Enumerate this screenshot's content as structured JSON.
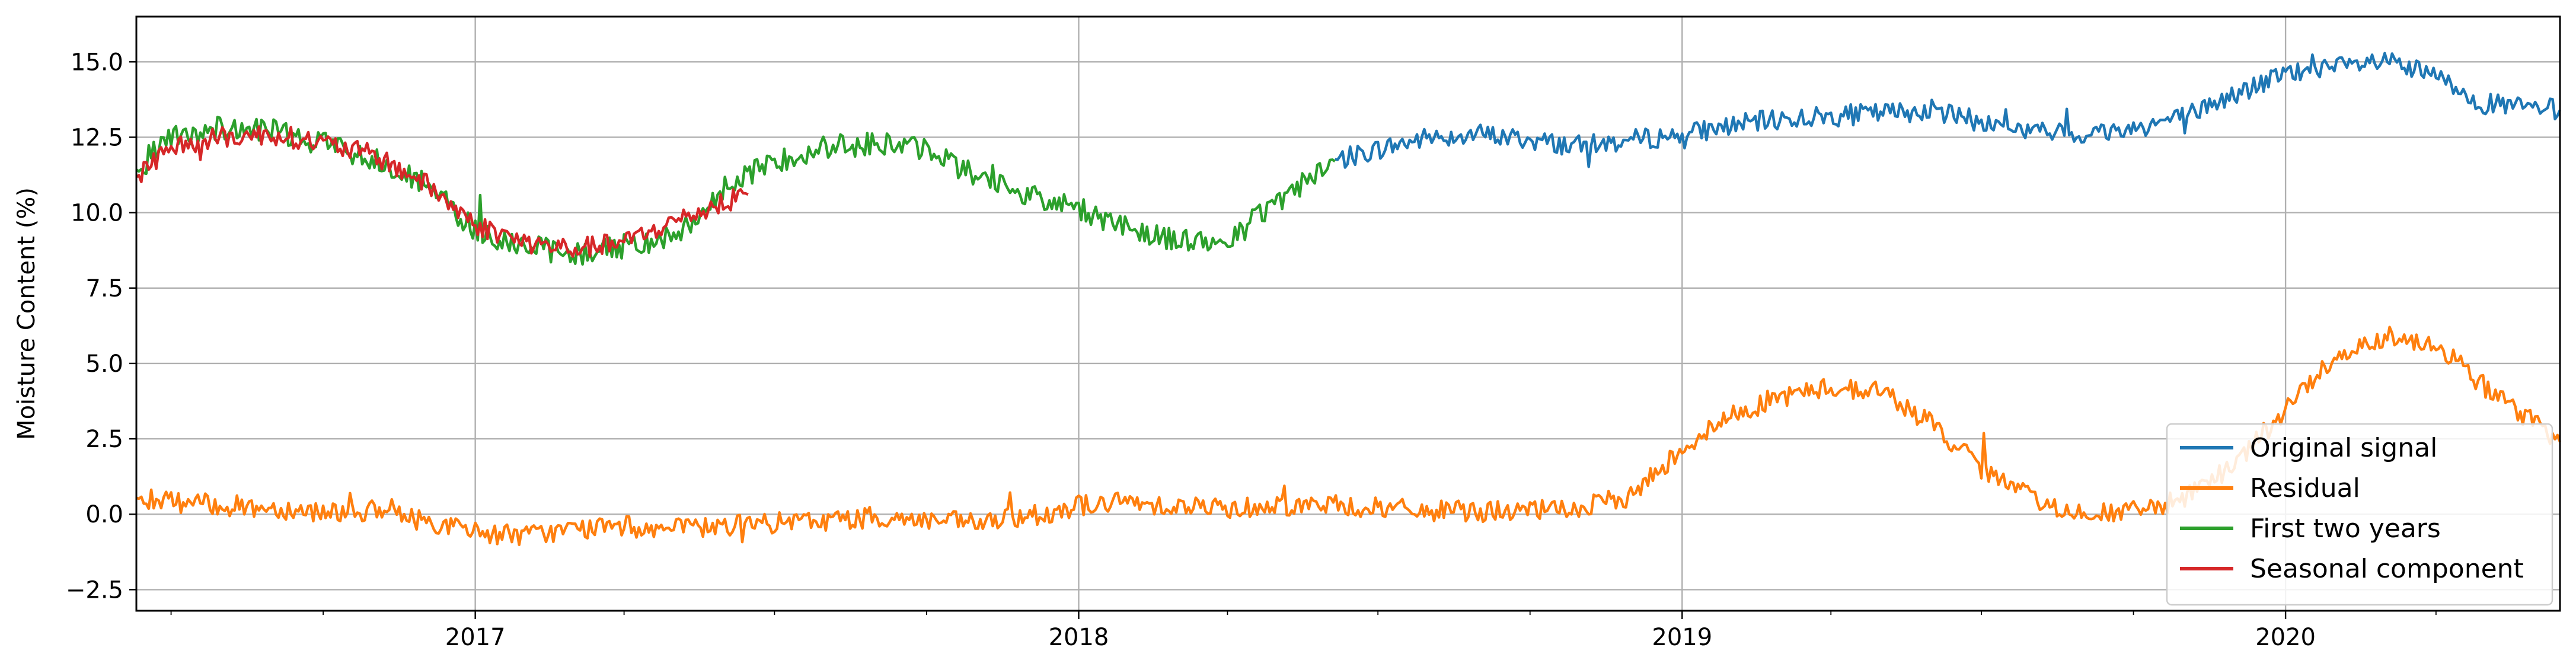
{
  "chart_data": {
    "type": "line",
    "title": "",
    "xlabel": "",
    "ylabel": "Moisture Content (%)",
    "xlim": [
      "2016-06-10",
      "2020-06-15"
    ],
    "ylim": [
      -3.2,
      16.5
    ],
    "grid": true,
    "legend_position": "lower-right",
    "x_tick_labels": [
      "2017",
      "2018",
      "2019",
      "2020"
    ],
    "x_tick_dates": [
      "2017-01-01",
      "2018-01-01",
      "2019-01-01",
      "2020-01-01"
    ],
    "y_ticks": [
      -2.5,
      0.0,
      2.5,
      5.0,
      7.5,
      10.0,
      12.5,
      15.0
    ],
    "y_tick_labels": [
      "−2.5",
      "0.0",
      "2.5",
      "5.0",
      "7.5",
      "10.0",
      "12.5",
      "15.0"
    ],
    "series": [
      {
        "name": "Original signal",
        "color": "#1f77b4",
        "x": [
          "2018-06-05",
          "2018-07-01",
          "2018-08-01",
          "2018-09-01",
          "2018-10-01",
          "2018-11-01",
          "2018-12-01",
          "2019-01-01",
          "2019-02-01",
          "2019-03-01",
          "2019-04-01",
          "2019-05-01",
          "2019-06-01",
          "2019-07-01",
          "2019-08-01",
          "2019-09-01",
          "2019-10-01",
          "2019-11-01",
          "2019-12-01",
          "2020-01-01",
          "2020-02-01",
          "2020-03-01",
          "2020-04-01",
          "2020-05-01",
          "2020-06-15"
        ],
        "y": [
          11.7,
          12.1,
          12.5,
          12.6,
          12.4,
          12.2,
          12.4,
          12.6,
          12.9,
          13.1,
          13.2,
          13.3,
          13.4,
          13.0,
          12.7,
          12.6,
          12.8,
          13.2,
          13.9,
          14.6,
          14.8,
          15.0,
          14.5,
          13.6,
          13.4
        ]
      },
      {
        "name": "Residual",
        "color": "#ff7f0e",
        "x": [
          "2016-06-10",
          "2016-07-01",
          "2016-08-01",
          "2016-09-01",
          "2016-10-01",
          "2016-11-01",
          "2016-12-01",
          "2017-01-01",
          "2017-02-01",
          "2017-03-01",
          "2017-04-01",
          "2017-05-01",
          "2017-06-01",
          "2017-07-01",
          "2017-08-01",
          "2017-09-01",
          "2017-10-01",
          "2017-11-01",
          "2017-12-01",
          "2018-01-01",
          "2018-02-01",
          "2018-03-01",
          "2018-04-01",
          "2018-05-01",
          "2018-06-01",
          "2018-07-01",
          "2018-08-01",
          "2018-09-01",
          "2018-10-01",
          "2018-11-01",
          "2018-12-01",
          "2019-01-01",
          "2019-02-01",
          "2019-03-01",
          "2019-04-01",
          "2019-05-01",
          "2019-06-01",
          "2019-07-01",
          "2019-08-01",
          "2019-09-01",
          "2019-10-01",
          "2019-11-01",
          "2019-12-01",
          "2020-01-01",
          "2020-02-01",
          "2020-03-01",
          "2020-04-01",
          "2020-05-01",
          "2020-06-15"
        ],
        "y": [
          0.6,
          0.4,
          0.3,
          0.2,
          0.1,
          0.1,
          -0.2,
          -0.6,
          -0.7,
          -0.5,
          -0.4,
          -0.5,
          -0.4,
          -0.3,
          -0.2,
          -0.1,
          -0.2,
          -0.3,
          -0.1,
          0.3,
          0.4,
          0.3,
          0.2,
          0.3,
          0.3,
          0.2,
          0.1,
          0.1,
          0.1,
          0.2,
          0.6,
          2.2,
          3.3,
          3.9,
          4.2,
          4.1,
          3.0,
          1.5,
          0.5,
          0.0,
          0.1,
          0.5,
          1.6,
          3.5,
          5.3,
          5.9,
          5.7,
          4.2,
          2.4
        ]
      },
      {
        "name": "First two years",
        "color": "#2ca02c",
        "x": [
          "2016-06-10",
          "2016-07-01",
          "2016-08-01",
          "2016-09-01",
          "2016-10-01",
          "2016-11-01",
          "2016-12-01",
          "2017-01-01",
          "2017-02-01",
          "2017-03-01",
          "2017-04-01",
          "2017-05-01",
          "2017-06-01",
          "2017-07-01",
          "2017-08-01",
          "2017-09-01",
          "2017-10-01",
          "2017-11-01",
          "2017-12-01",
          "2018-01-01",
          "2018-02-01",
          "2018-03-01",
          "2018-04-01",
          "2018-05-01",
          "2018-06-05"
        ],
        "y": [
          11.5,
          12.5,
          12.8,
          12.7,
          12.3,
          11.8,
          11.0,
          9.4,
          8.9,
          8.6,
          8.9,
          9.2,
          10.8,
          11.7,
          12.2,
          12.3,
          12.1,
          11.2,
          10.6,
          10.1,
          9.5,
          9.1,
          9.0,
          10.4,
          11.7
        ]
      },
      {
        "name": "Seasonal component",
        "color": "#d62728",
        "x": [
          "2016-06-10",
          "2016-07-01",
          "2016-08-01",
          "2016-09-01",
          "2016-10-01",
          "2016-11-01",
          "2016-12-01",
          "2017-01-01",
          "2017-02-01",
          "2017-03-01",
          "2017-04-01",
          "2017-05-01",
          "2017-06-15"
        ],
        "y": [
          11.2,
          12.2,
          12.5,
          12.6,
          12.3,
          11.9,
          11.0,
          9.6,
          9.0,
          8.8,
          9.0,
          9.7,
          10.6
        ]
      }
    ]
  }
}
